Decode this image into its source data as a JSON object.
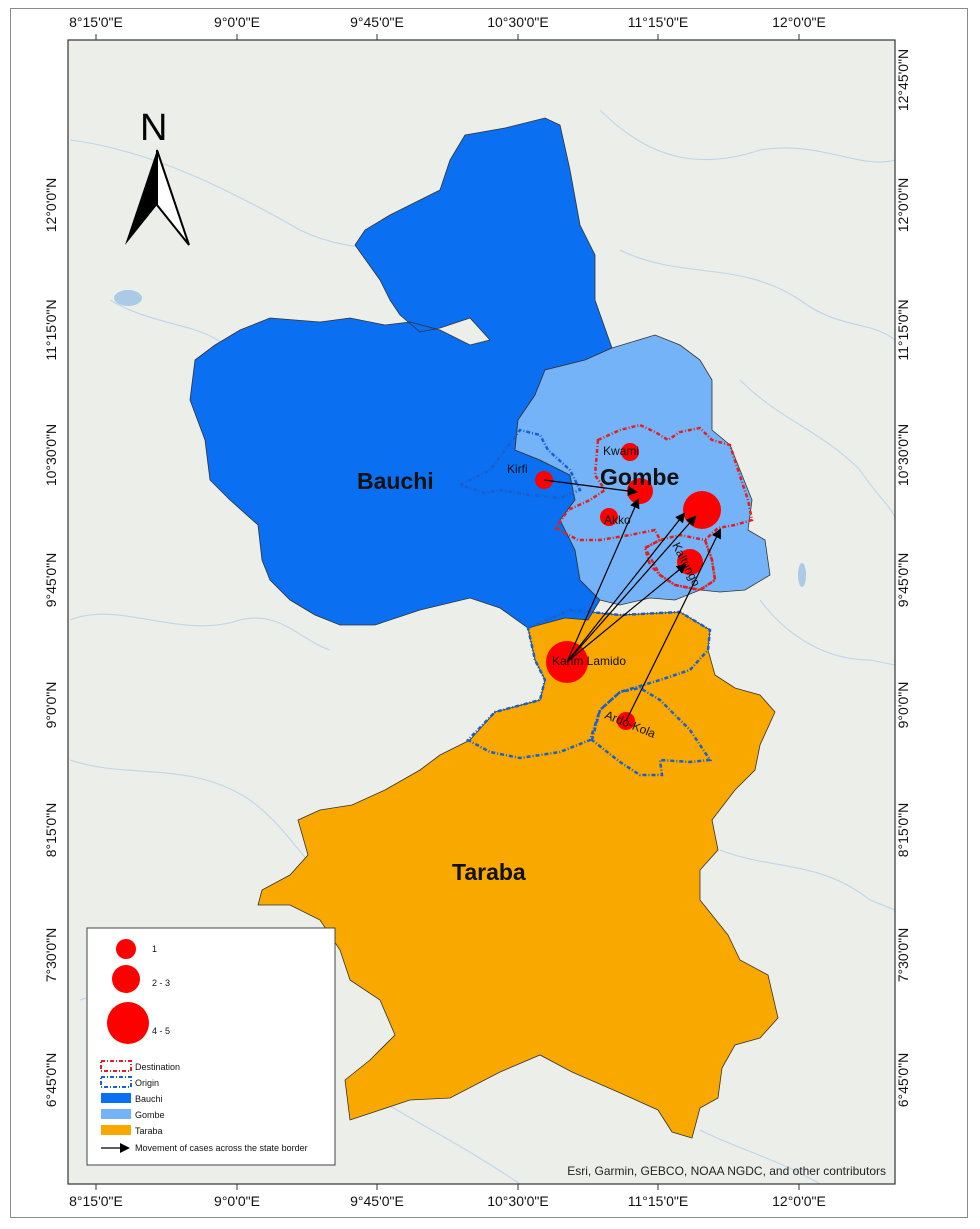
{
  "map": {
    "north_arrow": {
      "letter": "N",
      "icon": "north-arrow-icon"
    },
    "lon_labels": [
      "8°15'0\"E",
      "9°0'0\"E",
      "9°45'0\"E",
      "10°30'0\"E",
      "11°15'0\"E",
      "12°0'0\"E"
    ],
    "lat_labels_left": [
      "12°0'0\"N",
      "11°15'0\"N",
      "10°30'0\"N",
      "9°45'0\"N",
      "9°0'0\"N",
      "8°15'0\"N",
      "7°30'0\"N",
      "6°45'0\"N"
    ],
    "lat_labels_right": [
      "12°45'0\"N",
      "12°0'0\"N",
      "11°15'0\"N",
      "10°30'0\"N",
      "9°45'0\"N",
      "9°0'0\"N",
      "8°15'0\"N",
      "7°30'0\"N",
      "6°45'0\"N"
    ],
    "states": [
      {
        "name": "Bauchi",
        "color": "#0a6ff0"
      },
      {
        "name": "Gombe",
        "color": "#74b3f7"
      },
      {
        "name": "Taraba",
        "color": "#f9a800"
      }
    ],
    "places": [
      "Kwami",
      "Kirfi",
      "Gombe",
      "Akko",
      "Kaltungo",
      "Karim Lamido",
      "Ardo-Kola"
    ],
    "attribution": "Esri, Garmin, GEBCO, NOAA NGDC, and other contributors",
    "colors": {
      "cases": "#ff0000",
      "destination": "#e02020",
      "origin": "#1a5fd0",
      "arrow": "#000000",
      "basemap": "#eceeea"
    }
  },
  "legend": {
    "case_sizes": [
      "1",
      "2 - 3",
      "4 - 5"
    ],
    "items": [
      "Destination",
      "Origin",
      "Bauchi",
      "Gombe",
      "Taraba",
      "Movement of cases across the state border"
    ]
  }
}
